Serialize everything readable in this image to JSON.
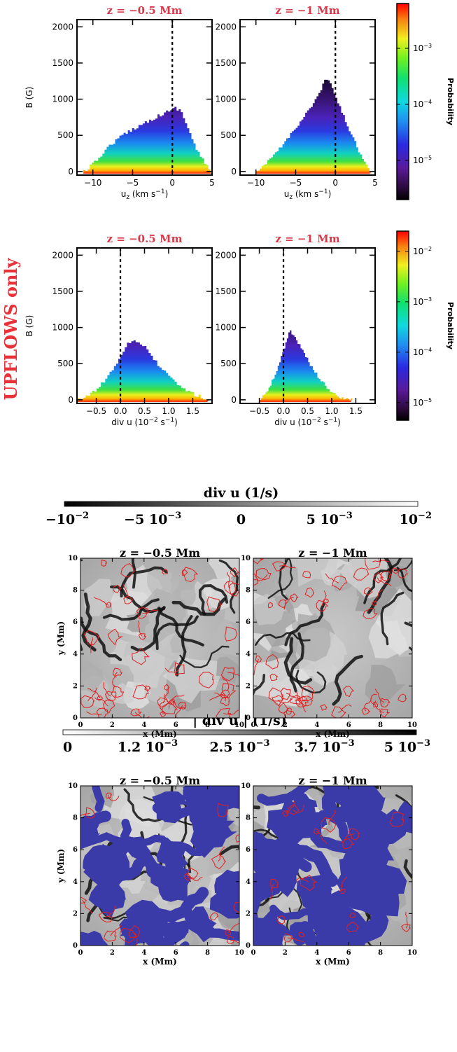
{
  "side_label": "UPFLOWS only",
  "colors": {
    "panel_title": "#d8394a",
    "side_label": "#e8323a",
    "contour": "#e02020",
    "mask": "#3a3aa8"
  },
  "colorbar_label": "Probability",
  "chart_data": [
    {
      "id": "pdf-uz-z05",
      "type": "heatmap",
      "title": "z = −0.5 Mm",
      "xlabel": "u",
      "xlabel_sub": "z",
      "xlabel_unit": " (km s",
      "xlabel_tail": ")",
      "ylabel": "B (G)",
      "xlim": [
        -12,
        5
      ],
      "ylim": [
        -50,
        2100
      ],
      "xticks": [
        -10,
        -5,
        0,
        5
      ],
      "yticks": [
        0,
        500,
        1000,
        1500,
        2000
      ],
      "reference_line_x": 0,
      "envelope": [
        [
          -11.2,
          0
        ],
        [
          -10,
          110
        ],
        [
          -8,
          360
        ],
        [
          -6,
          530
        ],
        [
          -4,
          650
        ],
        [
          -2,
          760
        ],
        [
          -0.5,
          840
        ],
        [
          0.3,
          880
        ],
        [
          1,
          840
        ],
        [
          2,
          560
        ],
        [
          3,
          290
        ],
        [
          4,
          110
        ],
        [
          4.8,
          0
        ]
      ]
    },
    {
      "id": "pdf-uz-z1",
      "type": "heatmap",
      "title": "z = −1 Mm",
      "xlabel": "u",
      "xlabel_sub": "z",
      "xlabel_unit": " (km s",
      "xlabel_tail": ")",
      "ylabel": "",
      "xlim": [
        -12,
        5
      ],
      "ylim": [
        -50,
        2100
      ],
      "xticks": [
        -10,
        -5,
        0,
        5
      ],
      "yticks": [
        0,
        500,
        1000,
        1500,
        2000
      ],
      "reference_line_x": 0,
      "envelope": [
        [
          -10,
          0
        ],
        [
          -9,
          80
        ],
        [
          -7,
          330
        ],
        [
          -5,
          620
        ],
        [
          -3,
          920
        ],
        [
          -2,
          1100
        ],
        [
          -1.3,
          1300
        ],
        [
          -0.5,
          1160
        ],
        [
          0.5,
          880
        ],
        [
          1.5,
          620
        ],
        [
          2.5,
          380
        ],
        [
          3.5,
          130
        ],
        [
          4.3,
          0
        ]
      ]
    },
    {
      "id": "pdf-divu-z05",
      "type": "heatmap",
      "title": "z = −0.5 Mm",
      "xlabel": "div u (10",
      "xlabel_sup": "−2",
      "xlabel_tail": " s",
      "ylabel": "B (G)",
      "xlim": [
        -0.9,
        1.9
      ],
      "ylim": [
        -50,
        2100
      ],
      "xticks": [
        -0.5,
        0.0,
        0.5,
        1.0,
        1.5
      ],
      "yticks": [
        0,
        500,
        1000,
        1500,
        2000
      ],
      "reference_line_x": 0,
      "envelope": [
        [
          -0.9,
          0
        ],
        [
          -0.6,
          90
        ],
        [
          -0.3,
          300
        ],
        [
          -0.05,
          560
        ],
        [
          0.1,
          760
        ],
        [
          0.25,
          830
        ],
        [
          0.45,
          760
        ],
        [
          0.65,
          580
        ],
        [
          0.85,
          420
        ],
        [
          1.05,
          280
        ],
        [
          1.25,
          170
        ],
        [
          1.5,
          80
        ],
        [
          1.8,
          0
        ]
      ]
    },
    {
      "id": "pdf-divu-z1",
      "type": "heatmap",
      "title": "z = −1 Mm",
      "xlabel": "div u (10",
      "xlabel_sup": "−2",
      "xlabel_tail": " s",
      "ylabel": "",
      "xlim": [
        -0.9,
        1.9
      ],
      "ylim": [
        -50,
        2100
      ],
      "xticks": [
        -0.5,
        0.0,
        0.5,
        1.0,
        1.5
      ],
      "yticks": [
        0,
        500,
        1000,
        1500,
        2000
      ],
      "reference_line_x": 0,
      "envelope": [
        [
          -0.5,
          0
        ],
        [
          -0.3,
          170
        ],
        [
          -0.1,
          500
        ],
        [
          0.05,
          820
        ],
        [
          0.12,
          960
        ],
        [
          0.22,
          880
        ],
        [
          0.4,
          660
        ],
        [
          0.6,
          420
        ],
        [
          0.8,
          240
        ],
        [
          1.0,
          90
        ],
        [
          1.2,
          20
        ],
        [
          1.4,
          0
        ]
      ]
    },
    {
      "id": "colorbar-top",
      "type": "colorbar",
      "scale": "log",
      "label": "Probability",
      "ticks": [
        {
          "mantissa": "10",
          "exponent": "−3",
          "value": -3
        },
        {
          "mantissa": "10",
          "exponent": "−4",
          "value": -4
        },
        {
          "mantissa": "10",
          "exponent": "−5",
          "value": -5
        }
      ],
      "range_log": [
        -5.7,
        -2.2
      ]
    },
    {
      "id": "colorbar-mid",
      "type": "colorbar",
      "scale": "log",
      "label": "Probability",
      "ticks": [
        {
          "mantissa": "10",
          "exponent": "−2",
          "value": -2
        },
        {
          "mantissa": "10",
          "exponent": "−3",
          "value": -3
        },
        {
          "mantissa": "10",
          "exponent": "−4",
          "value": -4
        },
        {
          "mantissa": "10",
          "exponent": "−5",
          "value": -5
        }
      ],
      "range_log": [
        -5.35,
        -1.6
      ]
    },
    {
      "id": "map-divu-z05",
      "type": "heatmap",
      "title": "z = −0.5 Mm",
      "xlabel": "x   (Mm)",
      "ylabel": "y   (Mm)",
      "xlim": [
        0,
        10
      ],
      "ylim": [
        0,
        10
      ],
      "xticks": [
        0,
        2,
        4,
        6,
        8,
        10
      ],
      "yticks": [
        0,
        2,
        4,
        6,
        8,
        10
      ]
    },
    {
      "id": "map-divu-z1",
      "type": "heatmap",
      "title": "z = −1 Mm",
      "xlabel": "x   (Mm)",
      "ylabel": "",
      "xlim": [
        0,
        10
      ],
      "ylim": [
        0,
        10
      ],
      "xticks": [
        0,
        2,
        4,
        6,
        8,
        10
      ],
      "yticks": [
        0,
        2,
        4,
        6,
        8,
        10
      ]
    },
    {
      "id": "map-absdivu-z05",
      "type": "heatmap",
      "title": "z = −0.5 Mm",
      "xlabel": "x   (Mm)",
      "ylabel": "y   (Mm)",
      "xlim": [
        0,
        10
      ],
      "ylim": [
        0,
        10
      ],
      "xticks": [
        0,
        2,
        4,
        6,
        8,
        10
      ],
      "yticks": [
        0,
        2,
        4,
        6,
        8,
        10
      ]
    },
    {
      "id": "map-absdivu-z1",
      "type": "heatmap",
      "title": "z = −1 Mm",
      "xlabel": "x   (Mm)",
      "ylabel": "",
      "xlim": [
        0,
        10
      ],
      "ylim": [
        0,
        10
      ],
      "xticks": [
        0,
        2,
        4,
        6,
        8,
        10
      ],
      "yticks": [
        0,
        2,
        4,
        6,
        8,
        10
      ]
    },
    {
      "id": "colorbar-divu",
      "type": "colorbar",
      "scale": "linear",
      "title": "div u    (1/s)",
      "range": [
        -0.01,
        0.01
      ],
      "ticks": [
        {
          "mantissa": "−10",
          "exponent": "−2",
          "value": -0.01
        },
        {
          "mantissa": "−5 10",
          "exponent": "−3",
          "value": -0.005
        },
        {
          "mantissa": "0",
          "exponent": "",
          "value": 0
        },
        {
          "mantissa": "5 10",
          "exponent": "−3",
          "value": 0.005
        },
        {
          "mantissa": "10",
          "exponent": "−2",
          "value": 0.01
        }
      ]
    },
    {
      "id": "colorbar-absdivu",
      "type": "colorbar",
      "scale": "linear",
      "title": "| div u |    (1/s)",
      "range": [
        0,
        0.005
      ],
      "ticks": [
        {
          "mantissa": "0",
          "exponent": "",
          "value": 0
        },
        {
          "mantissa": "1.2 10",
          "exponent": "−3",
          "value": 0.0012
        },
        {
          "mantissa": "2.5 10",
          "exponent": "−3",
          "value": 0.0025
        },
        {
          "mantissa": "3.7 10",
          "exponent": "−3",
          "value": 0.0037
        },
        {
          "mantissa": "5 10",
          "exponent": "−3",
          "value": 0.005
        }
      ]
    }
  ]
}
